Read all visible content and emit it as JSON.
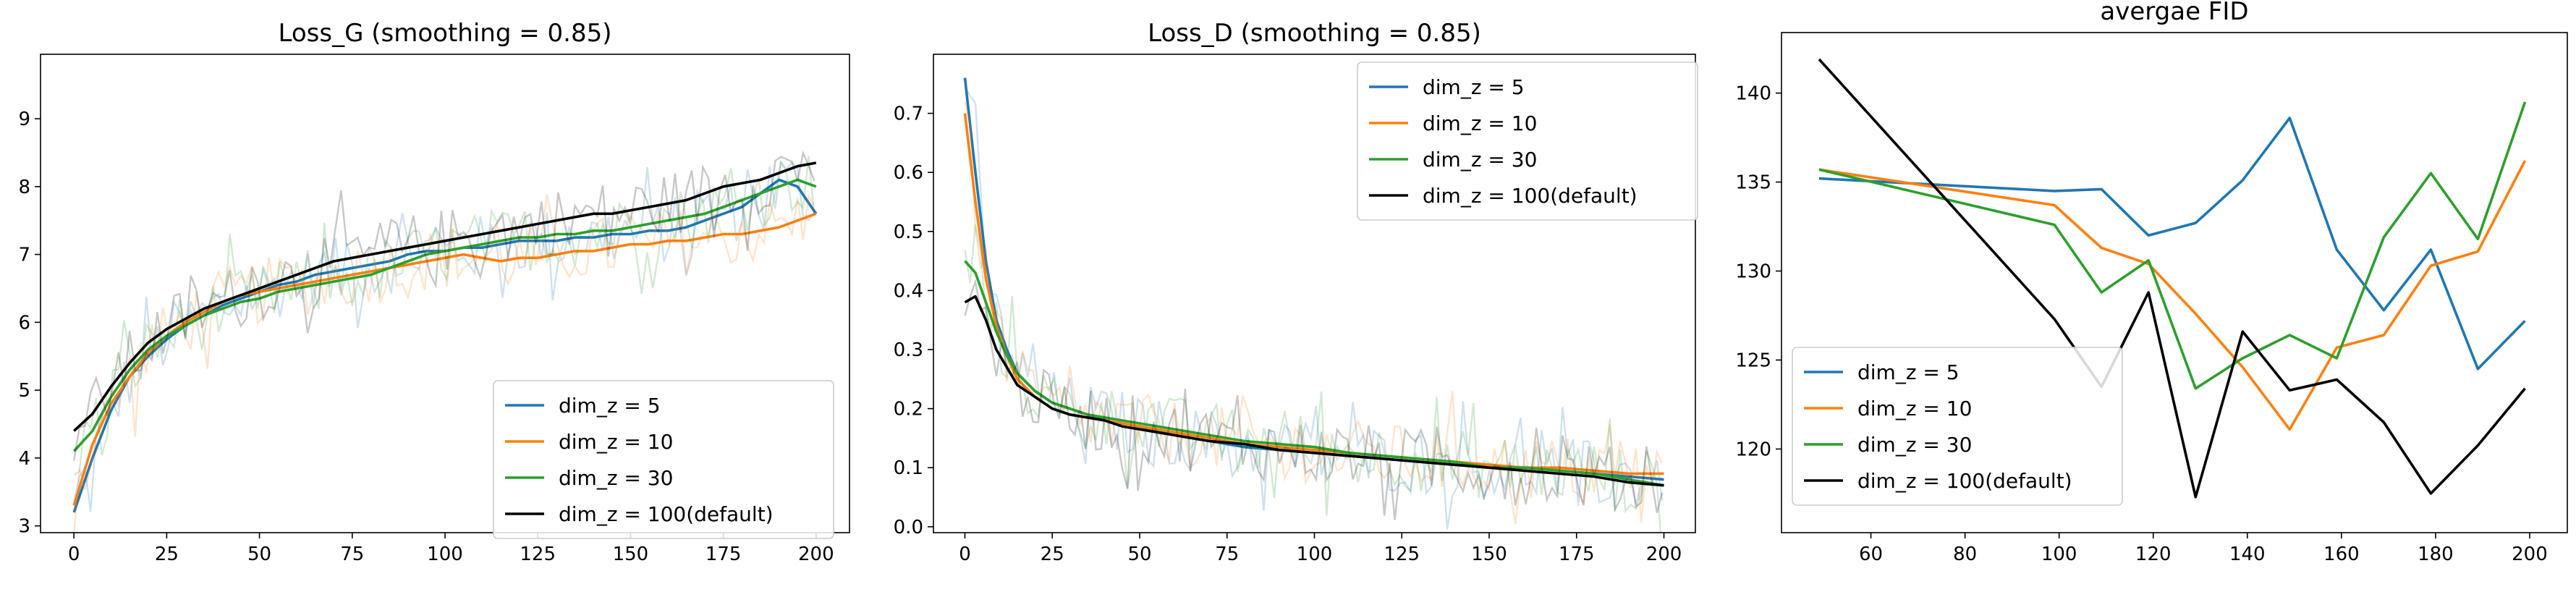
{
  "colors": {
    "dim_z_5": "#1f77b4",
    "dim_z_10": "#ff7f0e",
    "dim_z_30": "#2ca02c",
    "dim_z_100": "#000000"
  },
  "chart_data": [
    {
      "type": "line",
      "title": "Loss_G (smoothing = 0.85)",
      "xlabel": "",
      "ylabel": "",
      "xlim": [
        -9,
        209
      ],
      "ylim": [
        2.9,
        9.95
      ],
      "xticks": [
        0,
        25,
        50,
        75,
        100,
        125,
        150,
        175,
        200
      ],
      "yticks": [
        3,
        4,
        5,
        6,
        7,
        8,
        9
      ],
      "legend_position": "lower right",
      "raw_alpha": 0.22,
      "series": [
        {
          "name": "dim_z = 5",
          "color": "#1f77b4",
          "x": [
            0,
            5,
            10,
            15,
            20,
            25,
            30,
            35,
            40,
            45,
            50,
            55,
            60,
            65,
            70,
            75,
            80,
            85,
            90,
            95,
            100,
            105,
            110,
            115,
            120,
            125,
            130,
            135,
            140,
            145,
            150,
            155,
            160,
            165,
            170,
            175,
            180,
            185,
            190,
            195,
            200
          ],
          "values": [
            3.2,
            4.0,
            4.7,
            5.2,
            5.5,
            5.75,
            5.95,
            6.1,
            6.25,
            6.35,
            6.45,
            6.55,
            6.6,
            6.7,
            6.75,
            6.8,
            6.85,
            6.9,
            7.0,
            7.05,
            7.05,
            7.1,
            7.1,
            7.15,
            7.2,
            7.2,
            7.2,
            7.25,
            7.25,
            7.3,
            7.3,
            7.35,
            7.35,
            7.4,
            7.5,
            7.6,
            7.7,
            7.9,
            8.1,
            8.0,
            7.6
          ]
        },
        {
          "name": "dim_z = 10",
          "color": "#ff7f0e",
          "x": [
            0,
            5,
            10,
            15,
            20,
            25,
            30,
            35,
            40,
            45,
            50,
            55,
            60,
            65,
            70,
            75,
            80,
            85,
            90,
            95,
            100,
            105,
            110,
            115,
            120,
            125,
            130,
            135,
            140,
            145,
            150,
            155,
            160,
            165,
            170,
            175,
            180,
            185,
            190,
            195,
            200
          ],
          "values": [
            3.3,
            4.2,
            4.8,
            5.2,
            5.55,
            5.8,
            6.0,
            6.15,
            6.3,
            6.4,
            6.45,
            6.5,
            6.55,
            6.6,
            6.65,
            6.7,
            6.75,
            6.8,
            6.85,
            6.9,
            6.95,
            7.0,
            6.95,
            6.9,
            6.95,
            6.95,
            7.0,
            7.05,
            7.05,
            7.1,
            7.15,
            7.15,
            7.2,
            7.2,
            7.25,
            7.3,
            7.3,
            7.35,
            7.4,
            7.5,
            7.6
          ]
        },
        {
          "name": "dim_z = 30",
          "color": "#2ca02c",
          "x": [
            0,
            5,
            10,
            15,
            20,
            25,
            30,
            35,
            40,
            45,
            50,
            55,
            60,
            65,
            70,
            75,
            80,
            85,
            90,
            95,
            100,
            105,
            110,
            115,
            120,
            125,
            130,
            135,
            140,
            145,
            150,
            155,
            160,
            165,
            170,
            175,
            180,
            185,
            190,
            195,
            200
          ],
          "values": [
            4.1,
            4.4,
            4.9,
            5.3,
            5.6,
            5.8,
            5.95,
            6.1,
            6.2,
            6.3,
            6.35,
            6.45,
            6.5,
            6.55,
            6.6,
            6.65,
            6.7,
            6.8,
            6.9,
            7.0,
            7.05,
            7.1,
            7.15,
            7.2,
            7.25,
            7.25,
            7.3,
            7.3,
            7.35,
            7.35,
            7.4,
            7.45,
            7.5,
            7.55,
            7.6,
            7.7,
            7.8,
            7.9,
            8.0,
            8.1,
            8.0
          ]
        },
        {
          "name": "dim_z = 100(default)",
          "color": "#000000",
          "x": [
            0,
            5,
            10,
            15,
            20,
            25,
            30,
            35,
            40,
            45,
            50,
            55,
            60,
            65,
            70,
            75,
            80,
            85,
            90,
            95,
            100,
            105,
            110,
            115,
            120,
            125,
            130,
            135,
            140,
            145,
            150,
            155,
            160,
            165,
            170,
            175,
            180,
            185,
            190,
            195,
            200
          ],
          "values": [
            4.4,
            4.65,
            5.05,
            5.4,
            5.7,
            5.9,
            6.05,
            6.2,
            6.3,
            6.4,
            6.5,
            6.6,
            6.7,
            6.8,
            6.9,
            6.95,
            7.0,
            7.05,
            7.1,
            7.15,
            7.2,
            7.25,
            7.3,
            7.35,
            7.4,
            7.45,
            7.5,
            7.55,
            7.6,
            7.6,
            7.65,
            7.7,
            7.75,
            7.8,
            7.9,
            8.0,
            8.05,
            8.1,
            8.2,
            8.3,
            8.35
          ]
        }
      ]
    },
    {
      "type": "line",
      "title": "Loss_D (smoothing = 0.85)",
      "xlabel": "",
      "ylabel": "",
      "xlim": [
        -9,
        209
      ],
      "ylim": [
        -0.01,
        0.8
      ],
      "xticks": [
        0,
        25,
        50,
        75,
        100,
        125,
        150,
        175,
        200
      ],
      "yticks": [
        0.0,
        0.1,
        0.2,
        0.3,
        0.4,
        0.5,
        0.6,
        0.7
      ],
      "ytick_labels": [
        "0.0",
        "0.1",
        "0.2",
        "0.3",
        "0.4",
        "0.5",
        "0.6",
        "0.7"
      ],
      "legend_position": "upper right",
      "raw_alpha": 0.22,
      "series": [
        {
          "name": "dim_z = 5",
          "color": "#1f77b4",
          "x": [
            0,
            3,
            6,
            9,
            12,
            15,
            20,
            25,
            30,
            35,
            40,
            45,
            50,
            60,
            70,
            80,
            90,
            100,
            110,
            120,
            130,
            140,
            150,
            160,
            170,
            180,
            190,
            200
          ],
          "values": [
            0.76,
            0.6,
            0.45,
            0.35,
            0.3,
            0.26,
            0.23,
            0.21,
            0.2,
            0.19,
            0.18,
            0.175,
            0.17,
            0.155,
            0.145,
            0.135,
            0.13,
            0.125,
            0.12,
            0.115,
            0.11,
            0.105,
            0.1,
            0.1,
            0.095,
            0.09,
            0.085,
            0.08
          ]
        },
        {
          "name": "dim_z = 10",
          "color": "#ff7f0e",
          "x": [
            0,
            3,
            6,
            9,
            12,
            15,
            20,
            25,
            30,
            35,
            40,
            45,
            50,
            60,
            70,
            80,
            90,
            100,
            110,
            120,
            130,
            140,
            150,
            160,
            170,
            180,
            190,
            200
          ],
          "values": [
            0.7,
            0.55,
            0.42,
            0.34,
            0.29,
            0.25,
            0.22,
            0.2,
            0.19,
            0.185,
            0.18,
            0.175,
            0.17,
            0.16,
            0.15,
            0.14,
            0.135,
            0.13,
            0.125,
            0.12,
            0.115,
            0.11,
            0.105,
            0.1,
            0.1,
            0.095,
            0.09,
            0.09
          ]
        },
        {
          "name": "dim_z = 30",
          "color": "#2ca02c",
          "x": [
            0,
            3,
            6,
            9,
            12,
            15,
            20,
            25,
            30,
            35,
            40,
            45,
            50,
            60,
            70,
            80,
            90,
            100,
            110,
            120,
            130,
            140,
            150,
            160,
            170,
            180,
            190,
            200
          ],
          "values": [
            0.45,
            0.43,
            0.38,
            0.33,
            0.29,
            0.26,
            0.23,
            0.21,
            0.2,
            0.19,
            0.185,
            0.18,
            0.175,
            0.165,
            0.155,
            0.145,
            0.14,
            0.135,
            0.125,
            0.12,
            0.115,
            0.11,
            0.1,
            0.1,
            0.095,
            0.09,
            0.08,
            0.07
          ]
        },
        {
          "name": "dim_z = 100(default)",
          "color": "#000000",
          "x": [
            0,
            3,
            6,
            9,
            12,
            15,
            20,
            25,
            30,
            35,
            40,
            45,
            50,
            60,
            70,
            80,
            90,
            100,
            110,
            120,
            130,
            140,
            150,
            160,
            170,
            180,
            190,
            200
          ],
          "values": [
            0.38,
            0.39,
            0.35,
            0.3,
            0.27,
            0.24,
            0.22,
            0.2,
            0.19,
            0.185,
            0.18,
            0.17,
            0.165,
            0.155,
            0.145,
            0.14,
            0.13,
            0.125,
            0.12,
            0.115,
            0.11,
            0.105,
            0.1,
            0.095,
            0.09,
            0.085,
            0.075,
            0.07
          ]
        }
      ]
    },
    {
      "type": "line",
      "title": "avergae FID",
      "xlabel": "",
      "ylabel": "",
      "xlim": [
        41,
        208
      ],
      "ylim": [
        115.3,
        143.4
      ],
      "xticks": [
        60,
        80,
        100,
        120,
        140,
        160,
        180,
        200
      ],
      "yticks": [
        120,
        125,
        130,
        135,
        140
      ],
      "legend_position": "lower left",
      "raw_alpha": 0,
      "series": [
        {
          "name": "dim_z = 5",
          "color": "#1f77b4",
          "x": [
            49,
            99,
            109,
            119,
            129,
            139,
            149,
            159,
            169,
            179,
            189,
            199
          ],
          "values": [
            135.2,
            134.5,
            134.6,
            132.0,
            132.7,
            135.1,
            138.6,
            131.2,
            127.8,
            131.2,
            124.5,
            127.2
          ]
        },
        {
          "name": "dim_z = 10",
          "color": "#ff7f0e",
          "x": [
            49,
            99,
            109,
            119,
            129,
            139,
            149,
            159,
            169,
            179,
            189,
            199
          ],
          "values": [
            135.7,
            133.7,
            131.3,
            130.4,
            127.6,
            124.6,
            121.1,
            125.7,
            126.4,
            130.3,
            131.1,
            136.2
          ]
        },
        {
          "name": "dim_z = 30",
          "color": "#2ca02c",
          "x": [
            49,
            99,
            109,
            119,
            129,
            139,
            149,
            159,
            169,
            179,
            189,
            199
          ],
          "values": [
            135.7,
            132.6,
            128.8,
            130.6,
            123.4,
            125.1,
            126.4,
            125.1,
            131.9,
            135.5,
            131.8,
            139.5
          ]
        },
        {
          "name": "dim_z = 100(default)",
          "color": "#000000",
          "x": [
            49,
            99,
            109,
            119,
            129,
            139,
            149,
            159,
            169,
            179,
            189,
            199
          ],
          "values": [
            141.9,
            127.3,
            123.5,
            128.8,
            117.3,
            126.6,
            123.3,
            123.9,
            121.5,
            117.5,
            120.2,
            123.4
          ]
        }
      ]
    }
  ]
}
